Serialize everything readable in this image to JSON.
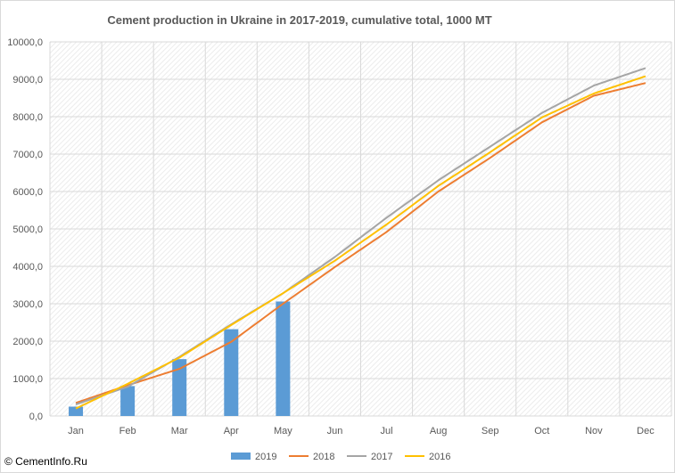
{
  "chart_data": {
    "type": "bar+line",
    "title": "Cement production in Ukraine in 2017-2019, cumulative total, 1000 MT",
    "categories": [
      "Jan",
      "Feb",
      "Mar",
      "Apr",
      "May",
      "Jun",
      "Jul",
      "Aug",
      "Sep",
      "Oct",
      "Nov",
      "Dec"
    ],
    "ylim": [
      0,
      10000
    ],
    "yticks": [
      0,
      1000,
      2000,
      3000,
      4000,
      5000,
      6000,
      7000,
      8000,
      9000,
      10000
    ],
    "ytick_labels": [
      "0,0",
      "1000,0",
      "2000,0",
      "3000,0",
      "4000,0",
      "5000,0",
      "6000,0",
      "7000,0",
      "8000,0",
      "9000,0",
      "10000,0"
    ],
    "grid": true,
    "legend_position": "bottom",
    "series": [
      {
        "name": "2019",
        "kind": "bar",
        "color": "#5b9bd5",
        "values": [
          250,
          800,
          1520,
          2320,
          3060,
          null,
          null,
          null,
          null,
          null,
          null,
          null
        ]
      },
      {
        "name": "2018",
        "kind": "line",
        "color": "#ed7d31",
        "values": [
          350,
          820,
          1260,
          1980,
          3000,
          3980,
          4920,
          6000,
          6900,
          7850,
          8560,
          8900
        ]
      },
      {
        "name": "2017",
        "kind": "line",
        "color": "#a5a5a5",
        "values": [
          310,
          780,
          1580,
          2450,
          3280,
          4250,
          5300,
          6300,
          7200,
          8100,
          8830,
          9300
        ]
      },
      {
        "name": "2016",
        "kind": "line",
        "color": "#ffc000",
        "values": [
          200,
          860,
          1560,
          2430,
          3280,
          4150,
          5120,
          6150,
          7050,
          7980,
          8620,
          9080
        ]
      }
    ]
  },
  "watermark": "© CementInfo.Ru"
}
